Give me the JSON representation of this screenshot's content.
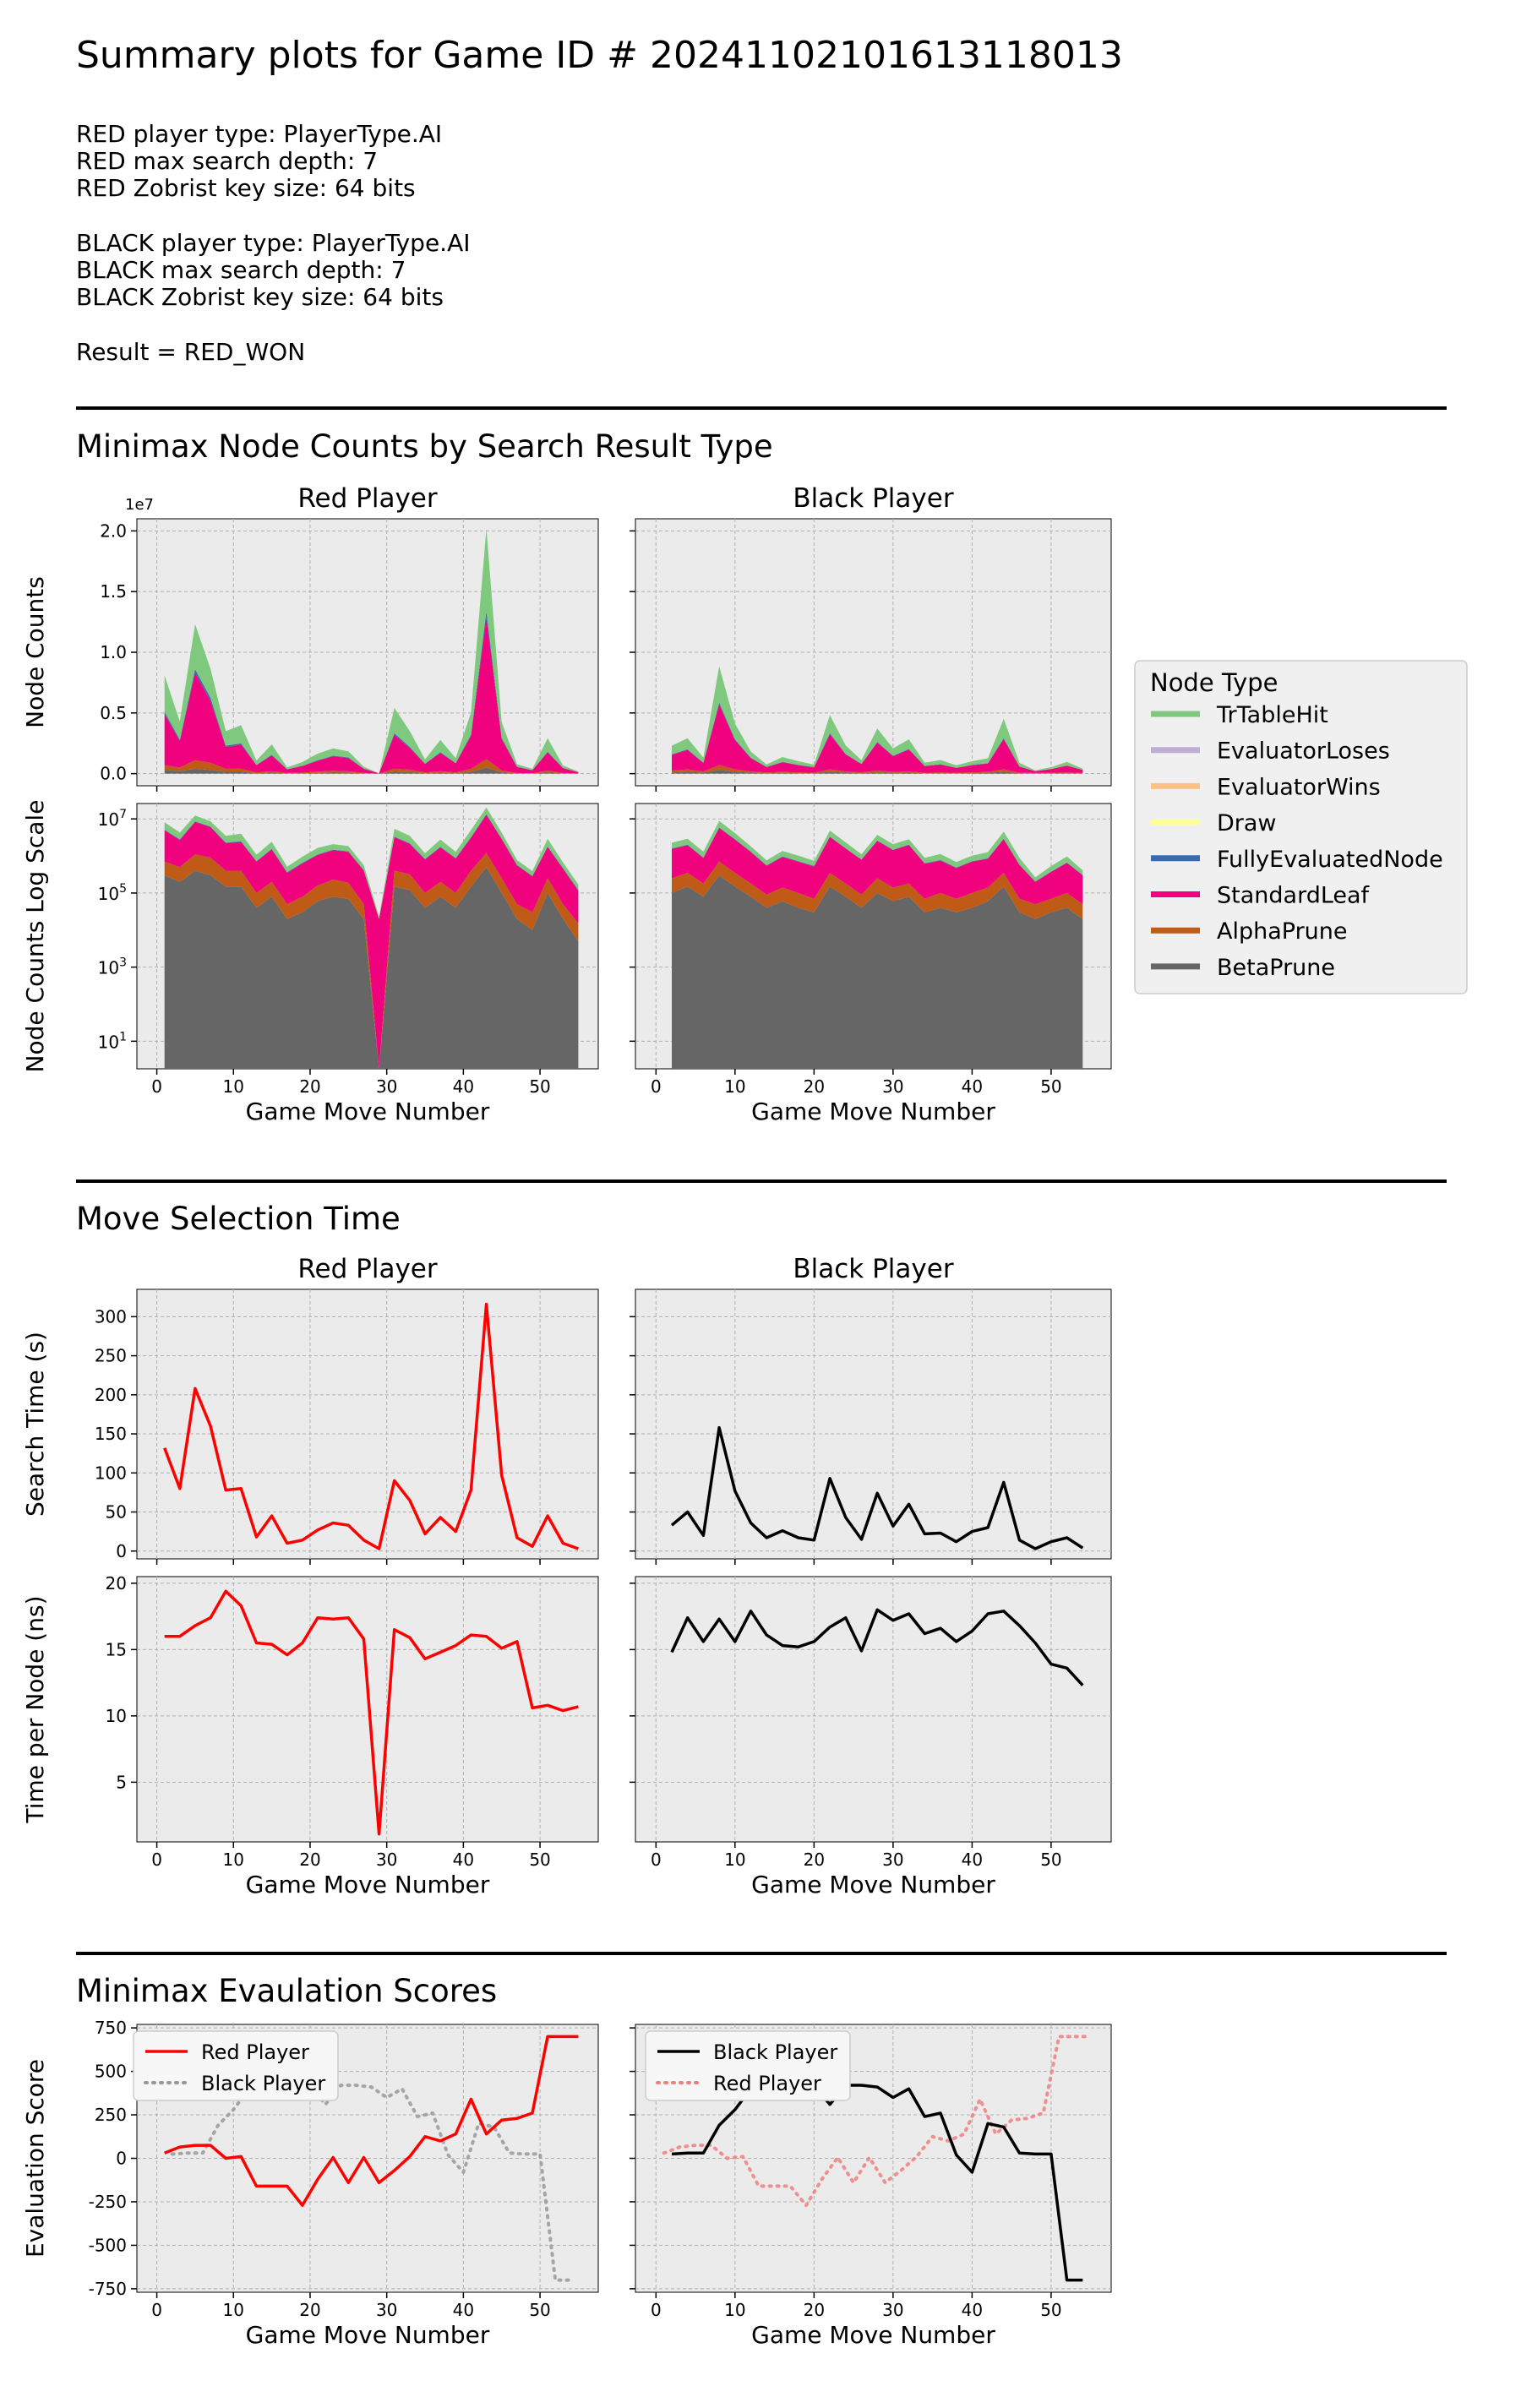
{
  "title": "Summary plots for Game ID # 20241102101613118013",
  "info": {
    "red_type": "RED player type: PlayerType.AI",
    "red_depth": "RED max search depth: 7",
    "red_zobrist": "RED Zobrist key size: 64 bits",
    "black_type": "BLACK player type: PlayerType.AI",
    "black_depth": "BLACK max search depth: 7",
    "black_zobrist": "BLACK Zobrist key size: 64 bits",
    "result": "Result = RED_WON"
  },
  "sections": {
    "node_counts": "Minimax Node Counts by Search Result Type",
    "move_time": "Move Selection Time",
    "eval": "Minimax Evaulation Scores"
  },
  "panel_titles": {
    "red": "Red Player",
    "black": "Black Player"
  },
  "axis_labels": {
    "x": "Game Move Number",
    "node_counts": "Node Counts",
    "node_counts_log": "Node Counts Log Scale",
    "search_time": "Search Time (s)",
    "time_per_node": "Time per Node (ns)",
    "eval": "Evaluation Score",
    "sci_exponent": "1e7"
  },
  "legend": {
    "title": "Node Type"
  },
  "colors": {
    "TrTableHit": "#7fc97f",
    "EvaluatorLoses": "#beaed4",
    "EvaluatorWins": "#fdc086",
    "Draw": "#ffff99",
    "FullyEvaluatedNode": "#386cb0",
    "StandardLeaf": "#f0027f",
    "AlphaPrune": "#bf5b17",
    "BetaPrune": "#666666",
    "red_line": "#ff0000",
    "black_line": "#000000",
    "panel_bg": "#ebebeb",
    "grid": "#b0b0b0"
  },
  "chart_data": [
    {
      "id": "node_counts_linear",
      "type": "area",
      "title": "Red Player / Black Player",
      "xlabel": "Game Move Number",
      "ylabel": "Node Counts",
      "ylim": [
        0,
        20000000
      ],
      "yticks": [
        "0.0",
        "0.5",
        "1.0",
        "1.5",
        "2.0"
      ],
      "xticks": [
        "0",
        "10",
        "20",
        "30",
        "40",
        "50"
      ],
      "stack_order": [
        "BetaPrune",
        "AlphaPrune",
        "StandardLeaf",
        "FullyEvaluatedNode",
        "Draw",
        "EvaluatorWins",
        "EvaluatorLoses",
        "TrTableHit"
      ],
      "red": {
        "x": [
          1,
          3,
          5,
          7,
          9,
          11,
          13,
          15,
          17,
          19,
          21,
          23,
          25,
          27,
          29,
          31,
          33,
          35,
          37,
          39,
          41,
          43,
          45,
          47,
          49,
          51,
          53,
          55
        ],
        "BetaPrune": [
          300000,
          200000,
          400000,
          300000,
          150000,
          150000,
          40000,
          80000,
          20000,
          30000,
          60000,
          80000,
          70000,
          20000,
          0,
          150000,
          120000,
          40000,
          80000,
          40000,
          150000,
          500000,
          100000,
          20000,
          10000,
          100000,
          20000,
          5000
        ],
        "AlphaPrune": [
          400000,
          300000,
          700000,
          600000,
          250000,
          250000,
          60000,
          120000,
          30000,
          50000,
          100000,
          150000,
          120000,
          30000,
          0,
          250000,
          200000,
          60000,
          120000,
          60000,
          250000,
          700000,
          150000,
          30000,
          20000,
          150000,
          30000,
          10000
        ],
        "StandardLeaf": [
          4200000,
          2200000,
          7200000,
          5100000,
          1800000,
          2000000,
          600000,
          1300000,
          300000,
          550000,
          900000,
          1200000,
          1100000,
          350000,
          20000,
          2800000,
          1800000,
          700000,
          1500000,
          750000,
          2700000,
          11700000,
          2600000,
          500000,
          250000,
          1500000,
          400000,
          100000
        ],
        "FullyEvaluatedNode": [
          200000,
          100000,
          300000,
          250000,
          100000,
          100000,
          30000,
          60000,
          15000,
          25000,
          40000,
          50000,
          50000,
          15000,
          0,
          120000,
          80000,
          30000,
          70000,
          30000,
          120000,
          500000,
          100000,
          25000,
          10000,
          60000,
          20000,
          5000
        ],
        "Draw": [
          0,
          0,
          0,
          0,
          0,
          0,
          0,
          0,
          0,
          0,
          0,
          0,
          0,
          0,
          0,
          0,
          0,
          0,
          0,
          0,
          0,
          0,
          0,
          0,
          0,
          0,
          0,
          0
        ],
        "EvaluatorWins": [
          2000,
          2000,
          3000,
          1500,
          300,
          1000,
          800,
          1000,
          400,
          800,
          700,
          600,
          500,
          0,
          0,
          0,
          2000,
          1500,
          900,
          800,
          800,
          300,
          800,
          1000,
          600,
          900,
          200,
          20
        ],
        "EvaluatorLoses": [
          3,
          5,
          10,
          15,
          300,
          200,
          200,
          100,
          10,
          200,
          200,
          20,
          60,
          3,
          0,
          3,
          5,
          3,
          1,
          1,
          5,
          3,
          5,
          1,
          3,
          1,
          5,
          1
        ],
        "TrTableHit": [
          3000000,
          1500000,
          3700000,
          2400000,
          1200000,
          1500000,
          350000,
          850000,
          150000,
          300000,
          550000,
          600000,
          500000,
          150000,
          3000,
          2100000,
          1300000,
          350000,
          1000000,
          400000,
          1800000,
          6800000,
          1300000,
          200000,
          100000,
          1100000,
          200000,
          50000
        ]
      },
      "black": {
        "x": [
          2,
          4,
          6,
          8,
          10,
          12,
          14,
          16,
          18,
          20,
          22,
          24,
          26,
          28,
          30,
          32,
          34,
          36,
          38,
          40,
          42,
          44,
          46,
          48,
          50,
          52,
          54
        ],
        "BetaPrune": [
          100000,
          150000,
          80000,
          300000,
          150000,
          80000,
          40000,
          60000,
          40000,
          30000,
          150000,
          80000,
          40000,
          100000,
          60000,
          80000,
          30000,
          40000,
          30000,
          40000,
          60000,
          150000,
          30000,
          20000,
          30000,
          40000,
          20000
        ],
        "AlphaPrune": [
          150000,
          200000,
          100000,
          400000,
          200000,
          100000,
          50000,
          80000,
          60000,
          40000,
          200000,
          100000,
          50000,
          150000,
          80000,
          100000,
          40000,
          60000,
          40000,
          60000,
          80000,
          200000,
          40000,
          30000,
          40000,
          60000,
          30000
        ],
        "StandardLeaf": [
          1300000,
          1600000,
          700000,
          5000000,
          2400000,
          1100000,
          450000,
          800000,
          600000,
          450000,
          2900000,
          1400000,
          700000,
          2300000,
          1300000,
          1800000,
          550000,
          650000,
          400000,
          600000,
          700000,
          2500000,
          500000,
          150000,
          300000,
          550000,
          250000
        ],
        "FullyEvaluatedNode": [
          50000,
          60000,
          30000,
          150000,
          80000,
          40000,
          20000,
          30000,
          25000,
          20000,
          80000,
          40000,
          20000,
          60000,
          40000,
          50000,
          20000,
          25000,
          15000,
          20000,
          25000,
          70000,
          15000,
          5000,
          10000,
          20000,
          10000
        ],
        "Draw": [
          0,
          0,
          0,
          0,
          0,
          0,
          0,
          0,
          0,
          0,
          0,
          0,
          0,
          0,
          0,
          0,
          0,
          0,
          0,
          0,
          0,
          0,
          0,
          0,
          0,
          0,
          0
        ],
        "EvaluatorWins": [
          1000,
          800,
          400,
          1200,
          600,
          400,
          100,
          40,
          15,
          300,
          2000,
          1200,
          1000,
          2000,
          2500,
          1200,
          800,
          1000,
          800,
          500,
          400,
          20,
          5,
          0,
          0,
          0,
          10
        ],
        "EvaluatorLoses": [
          1500,
          3000,
          500,
          500,
          300,
          10,
          50,
          100,
          50,
          50,
          1000,
          800,
          1000,
          2000,
          600,
          300,
          200,
          400,
          20,
          100,
          5000,
          1000,
          200,
          1,
          3000,
          3000,
          1000
        ],
        "TrTableHit": [
          700000,
          900000,
          400000,
          3000000,
          1300000,
          500000,
          200000,
          400000,
          300000,
          200000,
          1500000,
          700000,
          300000,
          1100000,
          600000,
          800000,
          250000,
          350000,
          200000,
          300000,
          400000,
          1600000,
          300000,
          60000,
          150000,
          300000,
          100000
        ]
      }
    },
    {
      "id": "node_counts_log",
      "type": "area",
      "xlabel": "Game Move Number",
      "ylabel": "Node Counts Log Scale",
      "yscale": "log",
      "ylim": [
        1,
        20000000
      ],
      "yticks": [
        "10^1",
        "10^3",
        "10^5",
        "10^7"
      ],
      "xticks": [
        "0",
        "10",
        "20",
        "30",
        "40",
        "50"
      ],
      "note": "same stacked series as node_counts_linear"
    },
    {
      "id": "search_time",
      "type": "line",
      "xlabel": "Game Move Number",
      "ylabel": "Search Time (s)",
      "ylim": [
        -10,
        335
      ],
      "yticks": [
        "0",
        "50",
        "100",
        "150",
        "200",
        "250",
        "300"
      ],
      "xticks": [
        "0",
        "10",
        "20",
        "30",
        "40",
        "50"
      ],
      "red": {
        "x": [
          1,
          3,
          5,
          7,
          9,
          11,
          13,
          15,
          17,
          19,
          21,
          23,
          25,
          27,
          29,
          31,
          33,
          35,
          37,
          39,
          41,
          43,
          45,
          47,
          49,
          51,
          53,
          55
        ],
        "y": [
          132,
          80,
          208,
          160,
          78,
          80,
          18,
          45,
          10,
          14,
          27,
          36,
          33,
          14,
          3,
          90,
          65,
          22,
          43,
          25,
          78,
          316,
          97,
          17,
          6,
          45,
          10,
          3
        ]
      },
      "black": {
        "x": [
          2,
          4,
          6,
          8,
          10,
          12,
          14,
          16,
          18,
          20,
          22,
          24,
          26,
          28,
          30,
          32,
          34,
          36,
          38,
          40,
          42,
          44,
          46,
          48,
          50,
          52,
          54
        ],
        "y": [
          33,
          50,
          20,
          158,
          77,
          36,
          17,
          26,
          17,
          14,
          93,
          43,
          15,
          74,
          32,
          60,
          22,
          23,
          12,
          25,
          30,
          88,
          14,
          3,
          12,
          17,
          4
        ]
      }
    },
    {
      "id": "time_per_node",
      "type": "line",
      "xlabel": "Game Move Number",
      "ylabel": "Time per Node (ns)",
      "ylim": [
        0.5,
        20.5
      ],
      "yticks": [
        "5",
        "10",
        "15",
        "20"
      ],
      "xticks": [
        "0",
        "10",
        "20",
        "30",
        "40",
        "50"
      ],
      "red": {
        "x": [
          1,
          3,
          5,
          7,
          9,
          11,
          13,
          15,
          17,
          19,
          21,
          23,
          25,
          27,
          29,
          31,
          33,
          35,
          37,
          39,
          41,
          43,
          45,
          47,
          49,
          51,
          53,
          55
        ],
        "y": [
          16.0,
          16.0,
          16.8,
          17.4,
          19.4,
          18.3,
          15.5,
          15.4,
          14.6,
          15.5,
          17.4,
          17.3,
          17.4,
          15.8,
          1.1,
          16.5,
          15.9,
          14.3,
          14.8,
          15.3,
          16.1,
          16.0,
          15.1,
          15.6,
          10.6,
          10.8,
          10.4,
          10.7
        ]
      },
      "black": {
        "x": [
          2,
          4,
          6,
          8,
          10,
          12,
          14,
          16,
          18,
          20,
          22,
          24,
          26,
          28,
          30,
          32,
          34,
          36,
          38,
          40,
          42,
          44,
          46,
          48,
          50,
          52,
          54
        ],
        "y": [
          14.8,
          17.4,
          15.6,
          17.3,
          15.6,
          17.9,
          16.1,
          15.3,
          15.2,
          15.6,
          16.7,
          17.4,
          14.9,
          18.0,
          17.2,
          17.7,
          16.2,
          16.6,
          15.6,
          16.4,
          17.7,
          17.9,
          16.8,
          15.5,
          13.9,
          13.6,
          12.3
        ]
      }
    },
    {
      "id": "evaluation_scores",
      "type": "line",
      "xlabel": "Game Move Number",
      "ylabel": "Evaluation Score",
      "ylim": [
        -770,
        770
      ],
      "yticks": [
        "-750",
        "-500",
        "-250",
        "0",
        "250",
        "500",
        "750"
      ],
      "xticks": [
        "0",
        "10",
        "20",
        "30",
        "40",
        "50"
      ],
      "legend_red_panel": [
        "Red Player",
        "Black Player"
      ],
      "legend_black_panel": [
        "Black Player",
        "Red Player"
      ],
      "red": {
        "x": [
          1,
          3,
          5,
          7,
          9,
          11,
          13,
          15,
          17,
          19,
          21,
          23,
          25,
          27,
          29,
          31,
          33,
          35,
          37,
          39,
          41,
          43,
          45,
          47,
          49,
          51,
          53,
          55
        ],
        "y": [
          30,
          65,
          75,
          75,
          0,
          10,
          -160,
          -160,
          -160,
          -270,
          -120,
          5,
          -140,
          5,
          -140,
          -70,
          10,
          125,
          100,
          140,
          340,
          140,
          220,
          230,
          260,
          700,
          700,
          700
        ]
      },
      "black": {
        "x": [
          2,
          4,
          6,
          8,
          10,
          12,
          14,
          16,
          18,
          20,
          22,
          24,
          26,
          28,
          30,
          32,
          34,
          36,
          38,
          40,
          42,
          44,
          46,
          48,
          50,
          52,
          54
        ],
        "y": [
          25,
          30,
          30,
          190,
          280,
          400,
          400,
          420,
          420,
          420,
          310,
          420,
          420,
          410,
          350,
          400,
          240,
          260,
          20,
          -80,
          200,
          180,
          30,
          25,
          25,
          -700,
          -700
        ]
      }
    }
  ]
}
